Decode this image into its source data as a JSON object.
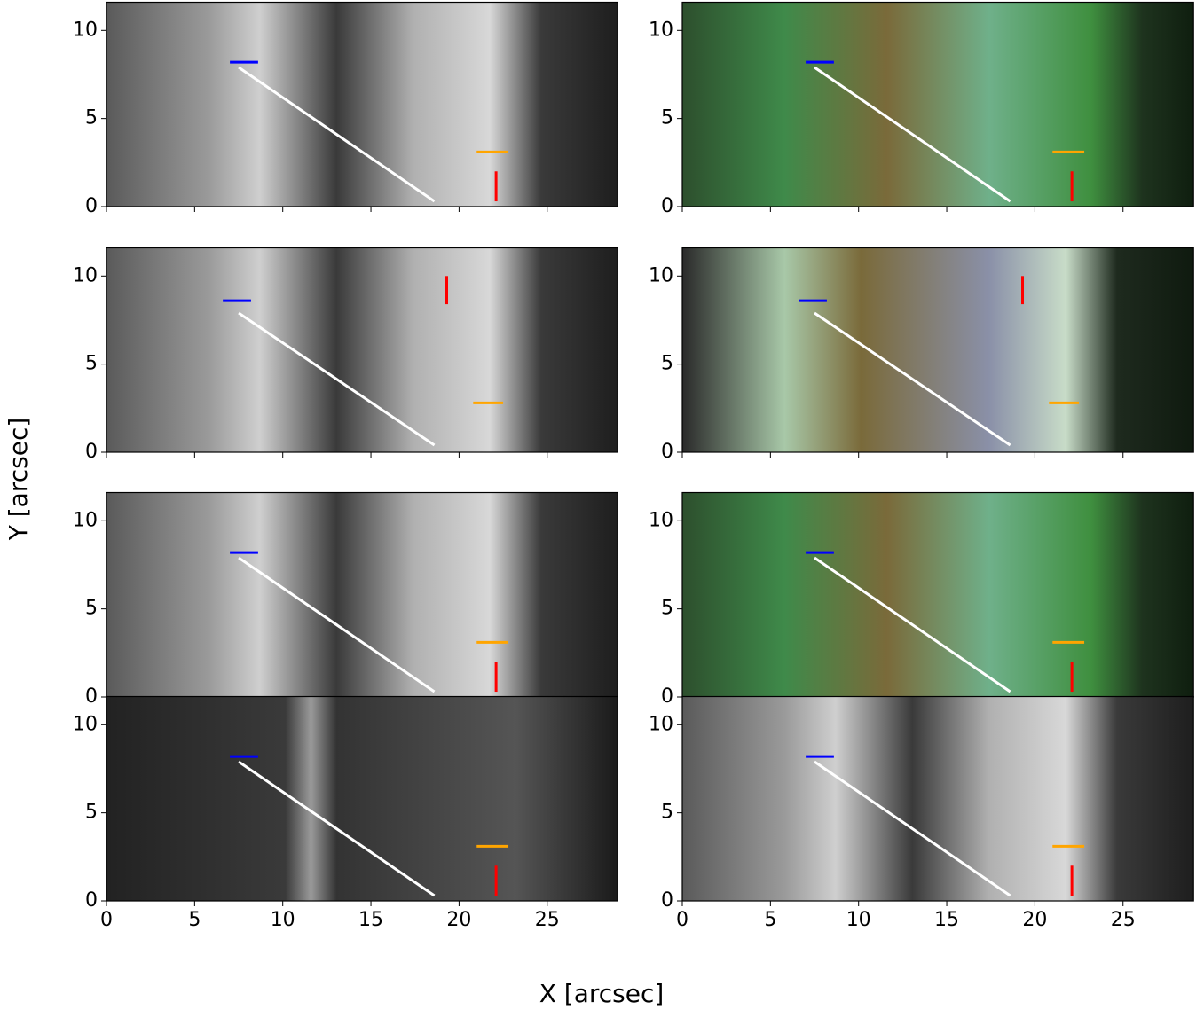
{
  "chart_data": {
    "type": "image-grid",
    "xlabel": "X [arcsec]",
    "ylabel": "Y [arcsec]",
    "xlim": [
      0,
      29
    ],
    "ylim": [
      0,
      11.6
    ],
    "xticks": [
      0,
      5,
      10,
      15,
      20,
      25
    ],
    "yticks": [
      0,
      5,
      10
    ],
    "panels": [
      {
        "type": "image",
        "colormap": "gray",
        "lines": [
          {
            "color": "#ffffff",
            "x": [
              7.5,
              18.6
            ],
            "y": [
              7.9,
              0.3
            ]
          },
          {
            "color": "#0000ff",
            "x": [
              7.0,
              8.6
            ],
            "y": [
              8.2,
              8.2
            ]
          },
          {
            "color": "#ffa500",
            "x": [
              21.0,
              22.8
            ],
            "y": [
              3.1,
              3.1
            ]
          },
          {
            "color": "#ff0000",
            "x": [
              22.1,
              22.1
            ],
            "y": [
              0.3,
              2.0
            ]
          }
        ]
      },
      {
        "type": "image",
        "colormap": "color",
        "lines": [
          {
            "color": "#ffffff",
            "x": [
              7.5,
              18.6
            ],
            "y": [
              7.9,
              0.3
            ]
          },
          {
            "color": "#0000ff",
            "x": [
              7.0,
              8.6
            ],
            "y": [
              8.2,
              8.2
            ]
          },
          {
            "color": "#ffa500",
            "x": [
              21.0,
              22.8
            ],
            "y": [
              3.1,
              3.1
            ]
          },
          {
            "color": "#ff0000",
            "x": [
              22.1,
              22.1
            ],
            "y": [
              0.3,
              2.0
            ]
          }
        ]
      },
      {
        "type": "image",
        "colormap": "gray",
        "lines": [
          {
            "color": "#ffffff",
            "x": [
              7.5,
              18.6
            ],
            "y": [
              7.9,
              0.4
            ]
          },
          {
            "color": "#0000ff",
            "x": [
              6.6,
              8.2
            ],
            "y": [
              8.6,
              8.6
            ]
          },
          {
            "color": "#ffa500",
            "x": [
              20.8,
              22.5
            ],
            "y": [
              2.8,
              2.8
            ]
          },
          {
            "color": "#ff0000",
            "x": [
              19.3,
              19.3
            ],
            "y": [
              8.4,
              10.0
            ]
          }
        ]
      },
      {
        "type": "image",
        "colormap": "pale",
        "lines": [
          {
            "color": "#ffffff",
            "x": [
              7.5,
              18.6
            ],
            "y": [
              7.9,
              0.4
            ]
          },
          {
            "color": "#0000ff",
            "x": [
              6.6,
              8.2
            ],
            "y": [
              8.6,
              8.6
            ]
          },
          {
            "color": "#ffa500",
            "x": [
              20.8,
              22.5
            ],
            "y": [
              2.8,
              2.8
            ]
          },
          {
            "color": "#ff0000",
            "x": [
              19.3,
              19.3
            ],
            "y": [
              8.4,
              10.0
            ]
          }
        ]
      },
      {
        "type": "image",
        "colormap": "gray",
        "lines": [
          {
            "color": "#ffffff",
            "x": [
              7.5,
              18.6
            ],
            "y": [
              7.9,
              0.3
            ]
          },
          {
            "color": "#0000ff",
            "x": [
              7.0,
              8.6
            ],
            "y": [
              8.2,
              8.2
            ]
          },
          {
            "color": "#ffa500",
            "x": [
              21.0,
              22.8
            ],
            "y": [
              3.1,
              3.1
            ]
          },
          {
            "color": "#ff0000",
            "x": [
              22.1,
              22.1
            ],
            "y": [
              0.3,
              2.0
            ]
          }
        ]
      },
      {
        "type": "image",
        "colormap": "color",
        "lines": [
          {
            "color": "#ffffff",
            "x": [
              7.5,
              18.6
            ],
            "y": [
              7.9,
              0.3
            ]
          },
          {
            "color": "#0000ff",
            "x": [
              7.0,
              8.6
            ],
            "y": [
              8.2,
              8.2
            ]
          },
          {
            "color": "#ffa500",
            "x": [
              21.0,
              22.8
            ],
            "y": [
              3.1,
              3.1
            ]
          },
          {
            "color": "#ff0000",
            "x": [
              22.1,
              22.1
            ],
            "y": [
              0.3,
              2.0
            ]
          }
        ]
      },
      {
        "type": "image",
        "colormap": "dark",
        "lines": [
          {
            "color": "#ffffff",
            "x": [
              7.5,
              18.6
            ],
            "y": [
              7.9,
              0.3
            ]
          },
          {
            "color": "#0000ff",
            "x": [
              7.0,
              8.6
            ],
            "y": [
              8.2,
              8.2
            ]
          },
          {
            "color": "#ffa500",
            "x": [
              21.0,
              22.8
            ],
            "y": [
              3.1,
              3.1
            ]
          },
          {
            "color": "#ff0000",
            "x": [
              22.1,
              22.1
            ],
            "y": [
              0.3,
              2.0
            ]
          }
        ]
      },
      {
        "type": "image",
        "colormap": "gray",
        "lines": [
          {
            "color": "#ffffff",
            "x": [
              7.5,
              18.6
            ],
            "y": [
              7.9,
              0.3
            ]
          },
          {
            "color": "#0000ff",
            "x": [
              7.0,
              8.6
            ],
            "y": [
              8.2,
              8.2
            ]
          },
          {
            "color": "#ffa500",
            "x": [
              21.0,
              22.8
            ],
            "y": [
              3.1,
              3.1
            ]
          },
          {
            "color": "#ff0000",
            "x": [
              22.1,
              22.1
            ],
            "y": [
              0.3,
              2.0
            ]
          }
        ]
      }
    ]
  }
}
